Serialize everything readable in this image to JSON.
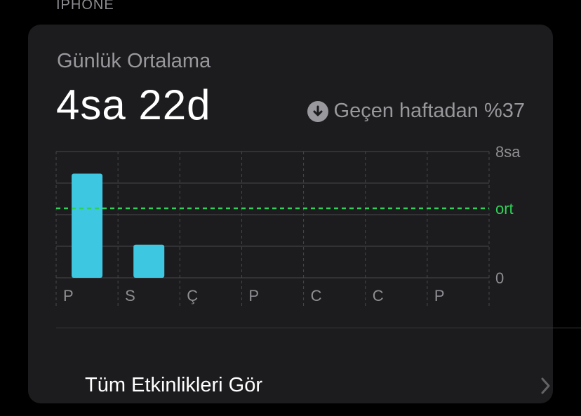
{
  "section": {
    "title": "IPHONE"
  },
  "card": {
    "subtitle": "Günlük Ortalama",
    "value": "4sa 22d",
    "trend": {
      "icon": "arrow-down-circle-icon",
      "text": "Geçen haftadan %37"
    }
  },
  "chart_data": {
    "type": "bar",
    "categories": [
      "P",
      "S",
      "Ç",
      "P",
      "C",
      "C",
      "P"
    ],
    "values": [
      6.6,
      2.1,
      0,
      0,
      0,
      0,
      0
    ],
    "ylim": [
      0,
      8
    ],
    "y_tick_labels": {
      "top": "8sa",
      "bottom": "0"
    },
    "average_label": "ort",
    "average_value": 4.4,
    "colors": {
      "bar": "#3ec7e1",
      "average": "#30d158",
      "grid": "#48484a"
    }
  },
  "footer": {
    "link_label": "Tüm Etkinlikleri Gör"
  }
}
